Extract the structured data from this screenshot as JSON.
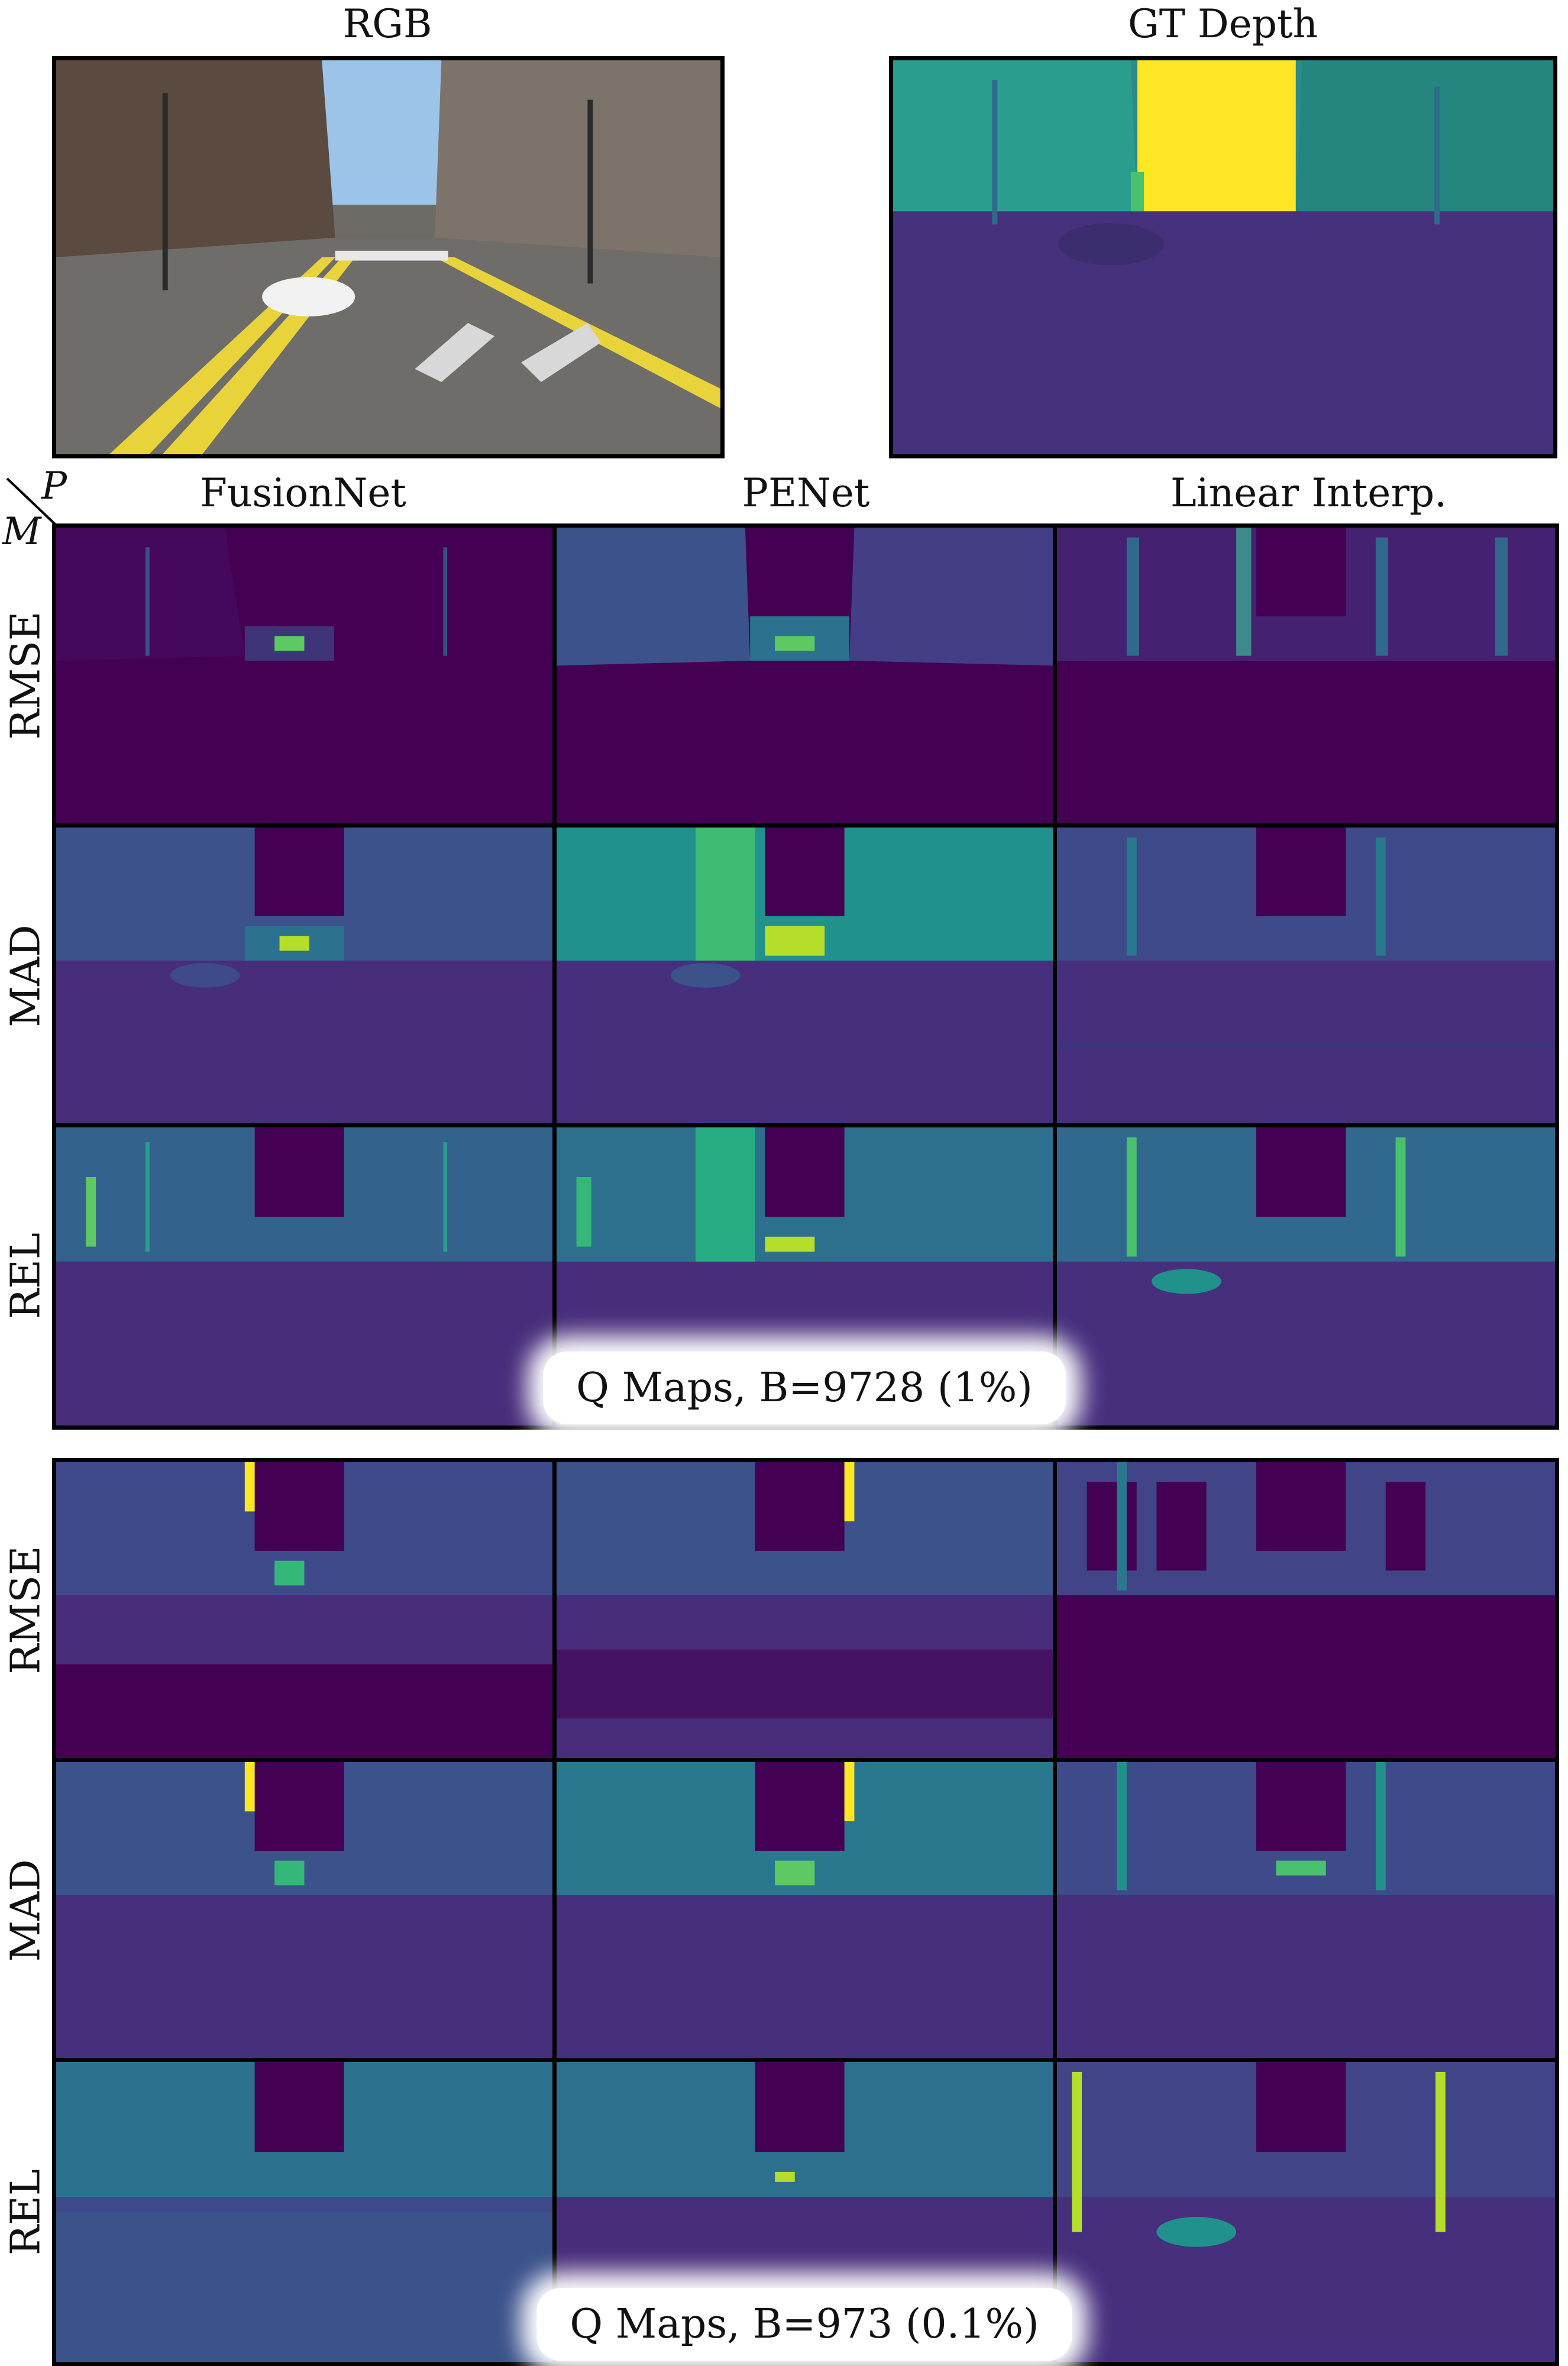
{
  "top": {
    "rgb_title": "RGB",
    "gt_title": "GT Depth"
  },
  "corner": {
    "p": "P",
    "m": "M"
  },
  "columns": [
    "FusionNet",
    "PENet",
    "Linear Interp."
  ],
  "panels": [
    {
      "rows": [
        "RMSE",
        "MAD",
        "REL"
      ],
      "caption": "Q Maps, B=9728 (1%)"
    },
    {
      "rows": [
        "RMSE",
        "MAD",
        "REL"
      ],
      "caption": "Q Maps, B=973 (0.1%)"
    }
  ],
  "colors": {
    "viridis_dark": "#440154",
    "viridis_blue": "#3b528b",
    "viridis_teal": "#21918c",
    "viridis_green": "#5ec962",
    "viridis_yellow": "#fde725",
    "sky": "#9cc3e8",
    "road": "#6e6b66",
    "lane_yellow": "#e9d33a"
  }
}
